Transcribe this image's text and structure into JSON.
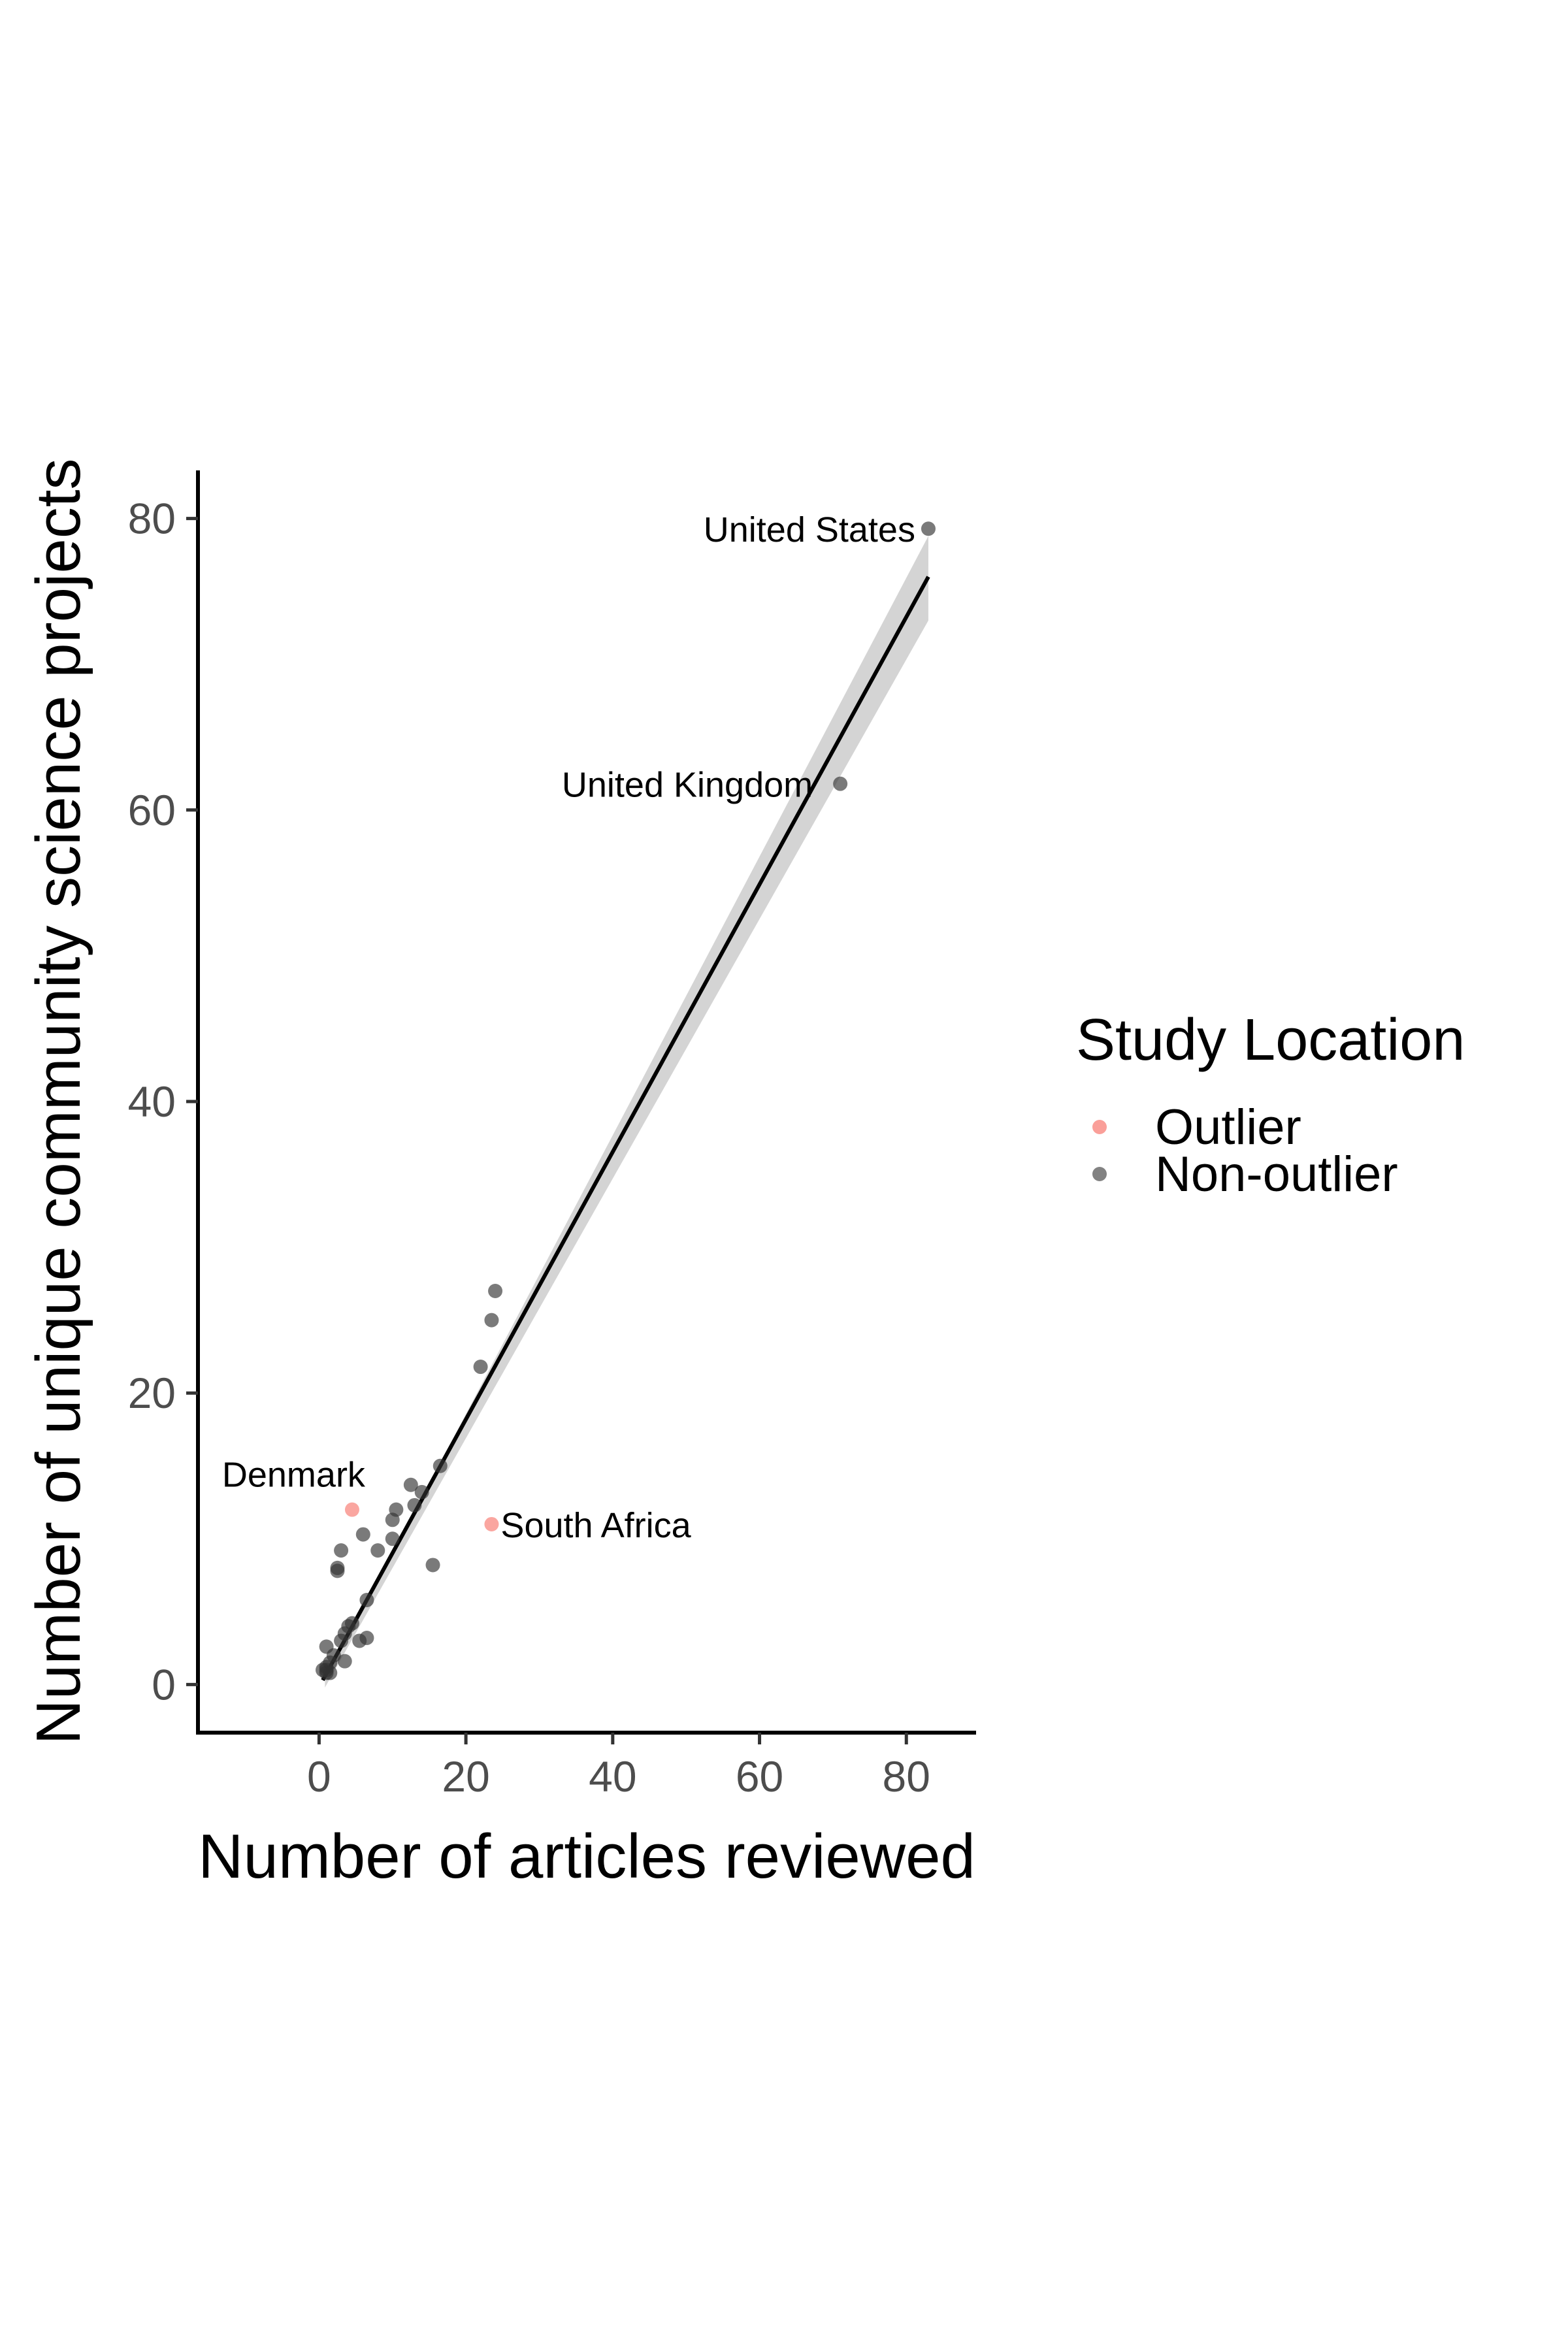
{
  "chart_data": {
    "type": "scatter",
    "title": "",
    "xlabel": "Number of articles reviewed",
    "ylabel": "Number of unique community science projects",
    "xlim": [
      -16.5,
      89.5
    ],
    "ylim": [
      -3.3,
      83.3
    ],
    "x_ticks": [
      "0",
      "20",
      "40",
      "60",
      "80"
    ],
    "y_ticks": [
      "0",
      "20",
      "40",
      "60",
      "80"
    ],
    "grid": false,
    "legend": {
      "title": "Study Location",
      "placement": "right",
      "entries": [
        {
          "label": "Outlier",
          "color": "#F8766D"
        },
        {
          "label": "Non-outlier",
          "color": "#4d4d4d"
        }
      ]
    },
    "series": [
      {
        "name": "Outlier",
        "color": "#F8766D",
        "points": [
          [
            4.5,
            12
          ],
          [
            23.5,
            11
          ]
        ]
      },
      {
        "name": "Non-outlier",
        "color": "#333333",
        "points": [
          [
            83,
            79.3
          ],
          [
            71,
            61.8
          ],
          [
            24,
            27
          ],
          [
            23.5,
            25
          ],
          [
            22,
            21.8
          ],
          [
            16.5,
            15
          ],
          [
            12.5,
            13.7
          ],
          [
            14,
            13.2
          ],
          [
            13,
            12.3
          ],
          [
            10.5,
            12
          ],
          [
            10,
            11.3
          ],
          [
            6,
            10.3
          ],
          [
            10,
            10
          ],
          [
            3,
            9.2
          ],
          [
            8,
            9.2
          ],
          [
            2.5,
            8
          ],
          [
            2.5,
            7.8
          ],
          [
            15.5,
            8.2
          ],
          [
            6.5,
            5.8
          ],
          [
            4.5,
            4.2
          ],
          [
            4,
            4
          ],
          [
            3.5,
            3.5
          ],
          [
            5.5,
            3
          ],
          [
            6.5,
            3.2
          ],
          [
            3,
            3
          ],
          [
            1,
            2.6
          ],
          [
            2,
            2
          ],
          [
            3.5,
            1.6
          ],
          [
            1.5,
            1.5
          ],
          [
            1,
            1.2
          ],
          [
            1,
            1
          ],
          [
            1.5,
            0.8
          ],
          [
            1,
            0.8
          ],
          [
            0.5,
            1
          ]
        ]
      }
    ],
    "annotations": [
      {
        "label": "United States",
        "x": 83,
        "y": 79.3
      },
      {
        "label": "United Kingdom",
        "x": 71,
        "y": 61.8
      },
      {
        "label": "Denmark",
        "x": 4.5,
        "y": 12
      },
      {
        "label": "South Africa",
        "x": 23.5,
        "y": 11
      }
    ],
    "fit": {
      "type": "linear",
      "line_start": [
        0.5,
        0.3
      ],
      "line_end": [
        83,
        76
      ],
      "ci_start": [
        0.8,
        -0.2
      ],
      "ci_upper_end": [
        83,
        78.8
      ],
      "ci_lower_end": [
        83,
        73
      ],
      "color": "#000000",
      "ci_color": "#cccccc"
    }
  }
}
